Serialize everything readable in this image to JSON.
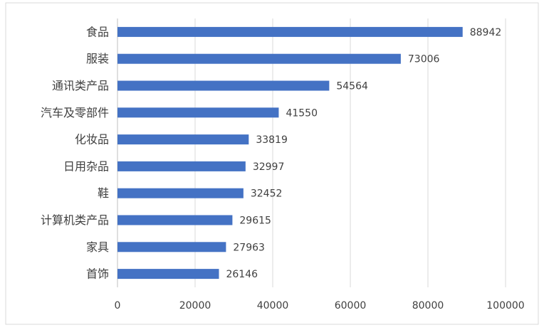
{
  "chart_data": {
    "type": "bar",
    "orientation": "horizontal",
    "categories": [
      "食品",
      "服装",
      "通讯类产品",
      "汽车及零部件",
      "化妆品",
      "日用杂品",
      "鞋",
      "计算机类产品",
      "家具",
      "首饰"
    ],
    "values": [
      88942,
      73006,
      54564,
      41550,
      33819,
      32997,
      32452,
      29615,
      27963,
      26146
    ],
    "color": "#4472c4",
    "xlim": [
      0,
      100000
    ],
    "xticks": [
      0,
      20000,
      40000,
      60000,
      80000,
      100000
    ],
    "grid": true
  }
}
